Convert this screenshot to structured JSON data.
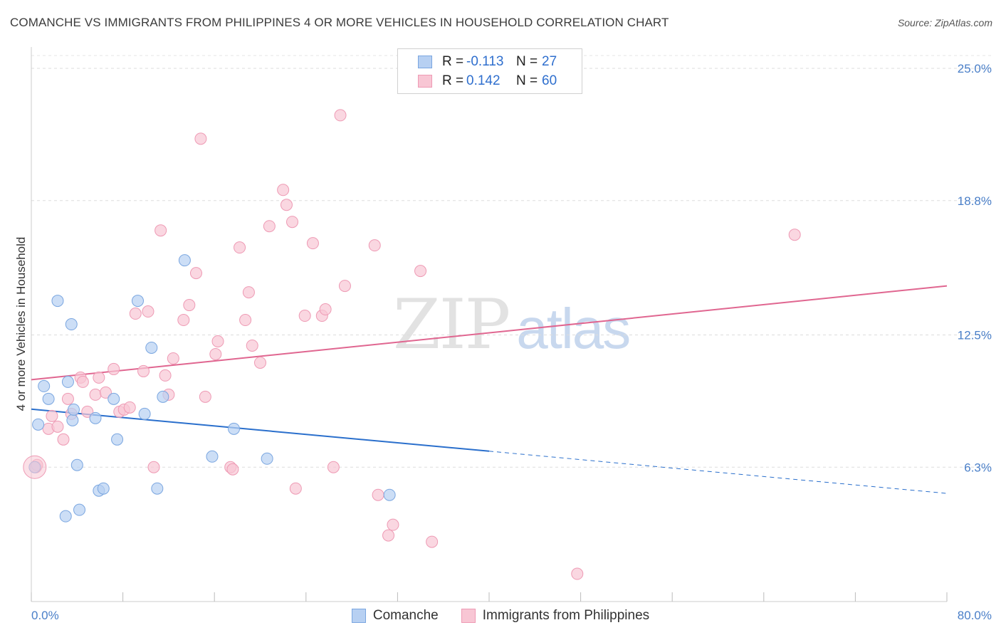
{
  "title": "COMANCHE VS IMMIGRANTS FROM PHILIPPINES 4 OR MORE VEHICLES IN HOUSEHOLD CORRELATION CHART",
  "source": "Source: ZipAtlas.com",
  "watermark": {
    "zip": "ZIP",
    "atlas": "atlas"
  },
  "legend": [
    {
      "r_label": "R =",
      "r_value": "-0.113",
      "n_label": "N =",
      "n_value": "27"
    },
    {
      "r_label": "R =",
      "r_value": "0.142",
      "n_label": "N =",
      "n_value": "60"
    }
  ],
  "bottom_legend": [
    "Comanche",
    "Immigrants from Philippines"
  ],
  "chart_data": {
    "type": "scatter",
    "title": "COMANCHE VS IMMIGRANTS FROM PHILIPPINES 4 OR MORE VEHICLES IN HOUSEHOLD CORRELATION CHART",
    "xlabel": "",
    "ylabel": "4 or more Vehicles in Household",
    "xlim": [
      0,
      80
    ],
    "ylim": [
      0,
      25.6
    ],
    "x_tick_labels": [
      "0.0%",
      "80.0%"
    ],
    "y_ticks": [
      6.3,
      12.5,
      18.8,
      25.0
    ],
    "y_tick_labels": [
      "6.3%",
      "12.5%",
      "18.8%",
      "25.0%"
    ],
    "grid": true,
    "series": [
      {
        "name": "Comanche",
        "color": "#7aa6e0",
        "fill": "#b7d0f2",
        "trend": {
          "x0": 0,
          "y0": 9.02,
          "x1": 40,
          "y1": 7.05,
          "dash_x1": 80,
          "dash_y1": 5.07,
          "color": "#2a6fcc"
        },
        "points": [
          [
            0.3,
            6.3
          ],
          [
            0.6,
            8.3
          ],
          [
            1.1,
            10.1
          ],
          [
            1.5,
            9.5
          ],
          [
            2.3,
            14.1
          ],
          [
            3.0,
            4.0
          ],
          [
            3.2,
            10.3
          ],
          [
            3.5,
            13.0
          ],
          [
            3.6,
            8.5
          ],
          [
            3.7,
            9.0
          ],
          [
            4.0,
            6.4
          ],
          [
            4.2,
            4.3
          ],
          [
            5.6,
            8.6
          ],
          [
            5.9,
            5.2
          ],
          [
            6.3,
            5.3
          ],
          [
            7.2,
            9.5
          ],
          [
            7.5,
            7.6
          ],
          [
            9.3,
            14.1
          ],
          [
            9.9,
            8.8
          ],
          [
            10.5,
            11.9
          ],
          [
            11.0,
            5.3
          ],
          [
            11.5,
            9.6
          ],
          [
            13.4,
            16.0
          ],
          [
            15.8,
            6.8
          ],
          [
            17.7,
            8.1
          ],
          [
            20.6,
            6.7
          ],
          [
            31.3,
            5.0
          ]
        ]
      },
      {
        "name": "Immigrants from Philippines",
        "color": "#ee9ab4",
        "fill": "#f8c6d4",
        "trend": {
          "x0": 0,
          "y0": 10.4,
          "x1": 80,
          "y1": 14.8,
          "color": "#e06690"
        },
        "points": [
          [
            0.4,
            6.3
          ],
          [
            1.5,
            8.1
          ],
          [
            1.8,
            8.7
          ],
          [
            2.3,
            8.2
          ],
          [
            2.8,
            7.6
          ],
          [
            3.2,
            9.5
          ],
          [
            3.5,
            8.8
          ],
          [
            4.3,
            10.5
          ],
          [
            4.5,
            10.3
          ],
          [
            4.9,
            8.9
          ],
          [
            5.6,
            9.7
          ],
          [
            5.9,
            10.5
          ],
          [
            6.5,
            9.8
          ],
          [
            7.2,
            10.9
          ],
          [
            7.7,
            8.9
          ],
          [
            8.1,
            9.0
          ],
          [
            8.6,
            9.1
          ],
          [
            9.1,
            13.5
          ],
          [
            9.8,
            10.8
          ],
          [
            10.2,
            13.6
          ],
          [
            10.7,
            6.3
          ],
          [
            11.3,
            17.4
          ],
          [
            11.7,
            10.6
          ],
          [
            12.0,
            9.7
          ],
          [
            12.4,
            11.4
          ],
          [
            13.3,
            13.2
          ],
          [
            13.8,
            13.9
          ],
          [
            14.4,
            15.4
          ],
          [
            14.8,
            21.7
          ],
          [
            15.2,
            9.6
          ],
          [
            16.1,
            11.6
          ],
          [
            16.3,
            12.2
          ],
          [
            17.4,
            6.3
          ],
          [
            17.6,
            6.2
          ],
          [
            18.2,
            16.6
          ],
          [
            18.7,
            13.2
          ],
          [
            19.0,
            14.5
          ],
          [
            19.3,
            12.0
          ],
          [
            20.0,
            11.2
          ],
          [
            20.8,
            17.6
          ],
          [
            22.0,
            19.3
          ],
          [
            22.3,
            18.6
          ],
          [
            22.8,
            17.8
          ],
          [
            23.1,
            5.3
          ],
          [
            23.9,
            13.4
          ],
          [
            24.6,
            16.8
          ],
          [
            25.4,
            13.4
          ],
          [
            25.7,
            13.7
          ],
          [
            26.4,
            6.3
          ],
          [
            27.0,
            22.8
          ],
          [
            27.4,
            14.8
          ],
          [
            30.0,
            16.7
          ],
          [
            30.3,
            5.0
          ],
          [
            31.2,
            3.1
          ],
          [
            31.6,
            3.6
          ],
          [
            34.0,
            15.5
          ],
          [
            35.0,
            2.8
          ],
          [
            47.7,
            1.3
          ],
          [
            66.7,
            17.2
          ],
          [
            0.5,
            6.4
          ]
        ]
      }
    ]
  }
}
